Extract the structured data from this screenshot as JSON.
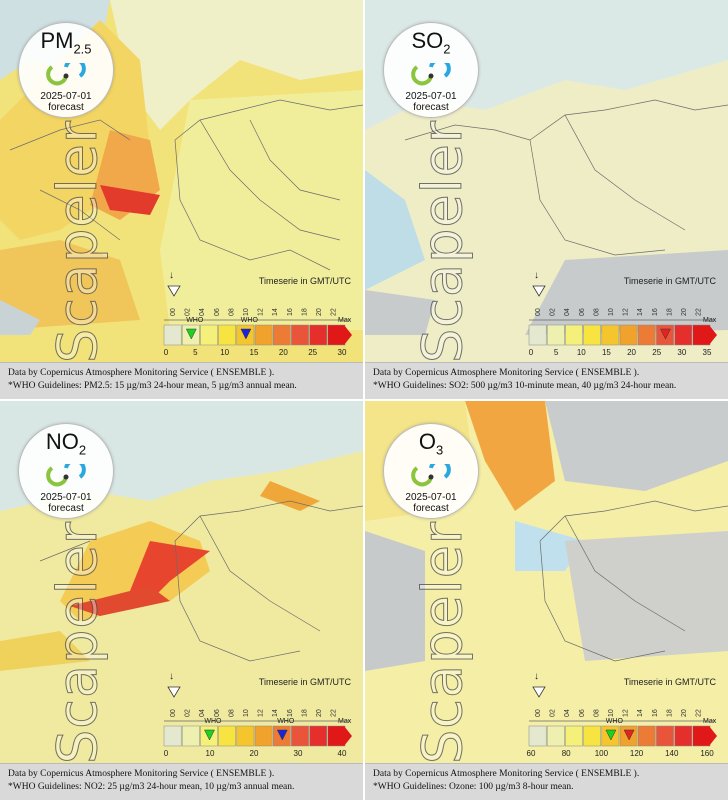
{
  "panels": [
    {
      "pollutant_main": "PM",
      "pollutant_sub": "2.5",
      "date": "2025-07-01",
      "forecast_label": "forecast",
      "watermark": "Scapeler",
      "timeserie_label": "Timeserie in GMT/UTC",
      "hours": [
        "00",
        "02",
        "04",
        "06",
        "08",
        "10",
        "12",
        "14",
        "16",
        "18",
        "20",
        "22"
      ],
      "scale_ticks": [
        "0",
        "5",
        "10",
        "15",
        "20",
        "25",
        "30"
      ],
      "max_label": "Max",
      "who_labels": [
        "WHO",
        "WHO"
      ],
      "footer_line1": "Data by Copernicus Atmosphere Monitoring Service ( ENSEMBLE ).",
      "footer_line2": "*WHO Guidelines: PM2.5: 15 µg/m3 24-hour mean, 5 µg/m3 annual mean."
    },
    {
      "pollutant_main": "SO",
      "pollutant_sub": "2",
      "date": "2025-07-01",
      "forecast_label": "forecast",
      "watermark": "Scapeler",
      "timeserie_label": "Timeserie in GMT/UTC",
      "hours": [
        "00",
        "02",
        "04",
        "06",
        "08",
        "10",
        "12",
        "14",
        "16",
        "18",
        "20",
        "22"
      ],
      "scale_ticks": [
        "0",
        "5",
        "10",
        "15",
        "20",
        "25",
        "30",
        "35"
      ],
      "max_label": "Max",
      "who_labels": [],
      "footer_line1": "Data by Copernicus Atmosphere Monitoring Service ( ENSEMBLE ).",
      "footer_line2": "*WHO Guidelines: SO2: 500 µg/m3 10-minute mean, 40 µg/m3 24-hour mean."
    },
    {
      "pollutant_main": "NO",
      "pollutant_sub": "2",
      "date": "2025-07-01",
      "forecast_label": "forecast",
      "watermark": "Scapeler",
      "timeserie_label": "Timeserie in GMT/UTC",
      "hours": [
        "00",
        "02",
        "04",
        "06",
        "08",
        "10",
        "12",
        "14",
        "16",
        "18",
        "20",
        "22"
      ],
      "scale_ticks": [
        "0",
        "10",
        "20",
        "30",
        "40"
      ],
      "max_label": "Max",
      "who_labels": [
        "WHO",
        "WHO"
      ],
      "footer_line1": "Data by Copernicus Atmosphere Monitoring Service ( ENSEMBLE ).",
      "footer_line2": "*WHO Guidelines: NO2: 25 µg/m3 24-hour mean, 10 µg/m3 annual mean."
    },
    {
      "pollutant_main": "O",
      "pollutant_sub": "3",
      "date": "2025-07-01",
      "forecast_label": "forecast",
      "watermark": "Scapeler",
      "timeserie_label": "Timeserie in GMT/UTC",
      "hours": [
        "00",
        "02",
        "04",
        "06",
        "08",
        "10",
        "12",
        "14",
        "16",
        "18",
        "20",
        "22"
      ],
      "scale_ticks": [
        "60",
        "80",
        "100",
        "120",
        "140",
        "160"
      ],
      "max_label": "Max",
      "who_labels": [
        "WHO"
      ],
      "footer_line1": "Data by Copernicus Atmosphere Monitoring Service ( ENSEMBLE ).",
      "footer_line2": "*WHO Guidelines: Ozone: 100 µg/m3 8-hour mean."
    }
  ],
  "colors": {
    "scale": [
      "#e3e8cf",
      "#eef0b0",
      "#f5f07a",
      "#f7e441",
      "#f5c52d",
      "#f0a22c",
      "#ec7c35",
      "#e9553a",
      "#e52f2c",
      "#e11818"
    ],
    "who_green": "#1fd11f",
    "who_blue": "#1a24d8",
    "who_red": "#e52222",
    "water": "#b9dde8",
    "land_low": "#eeecb0",
    "land_mid": "#f4e270"
  }
}
